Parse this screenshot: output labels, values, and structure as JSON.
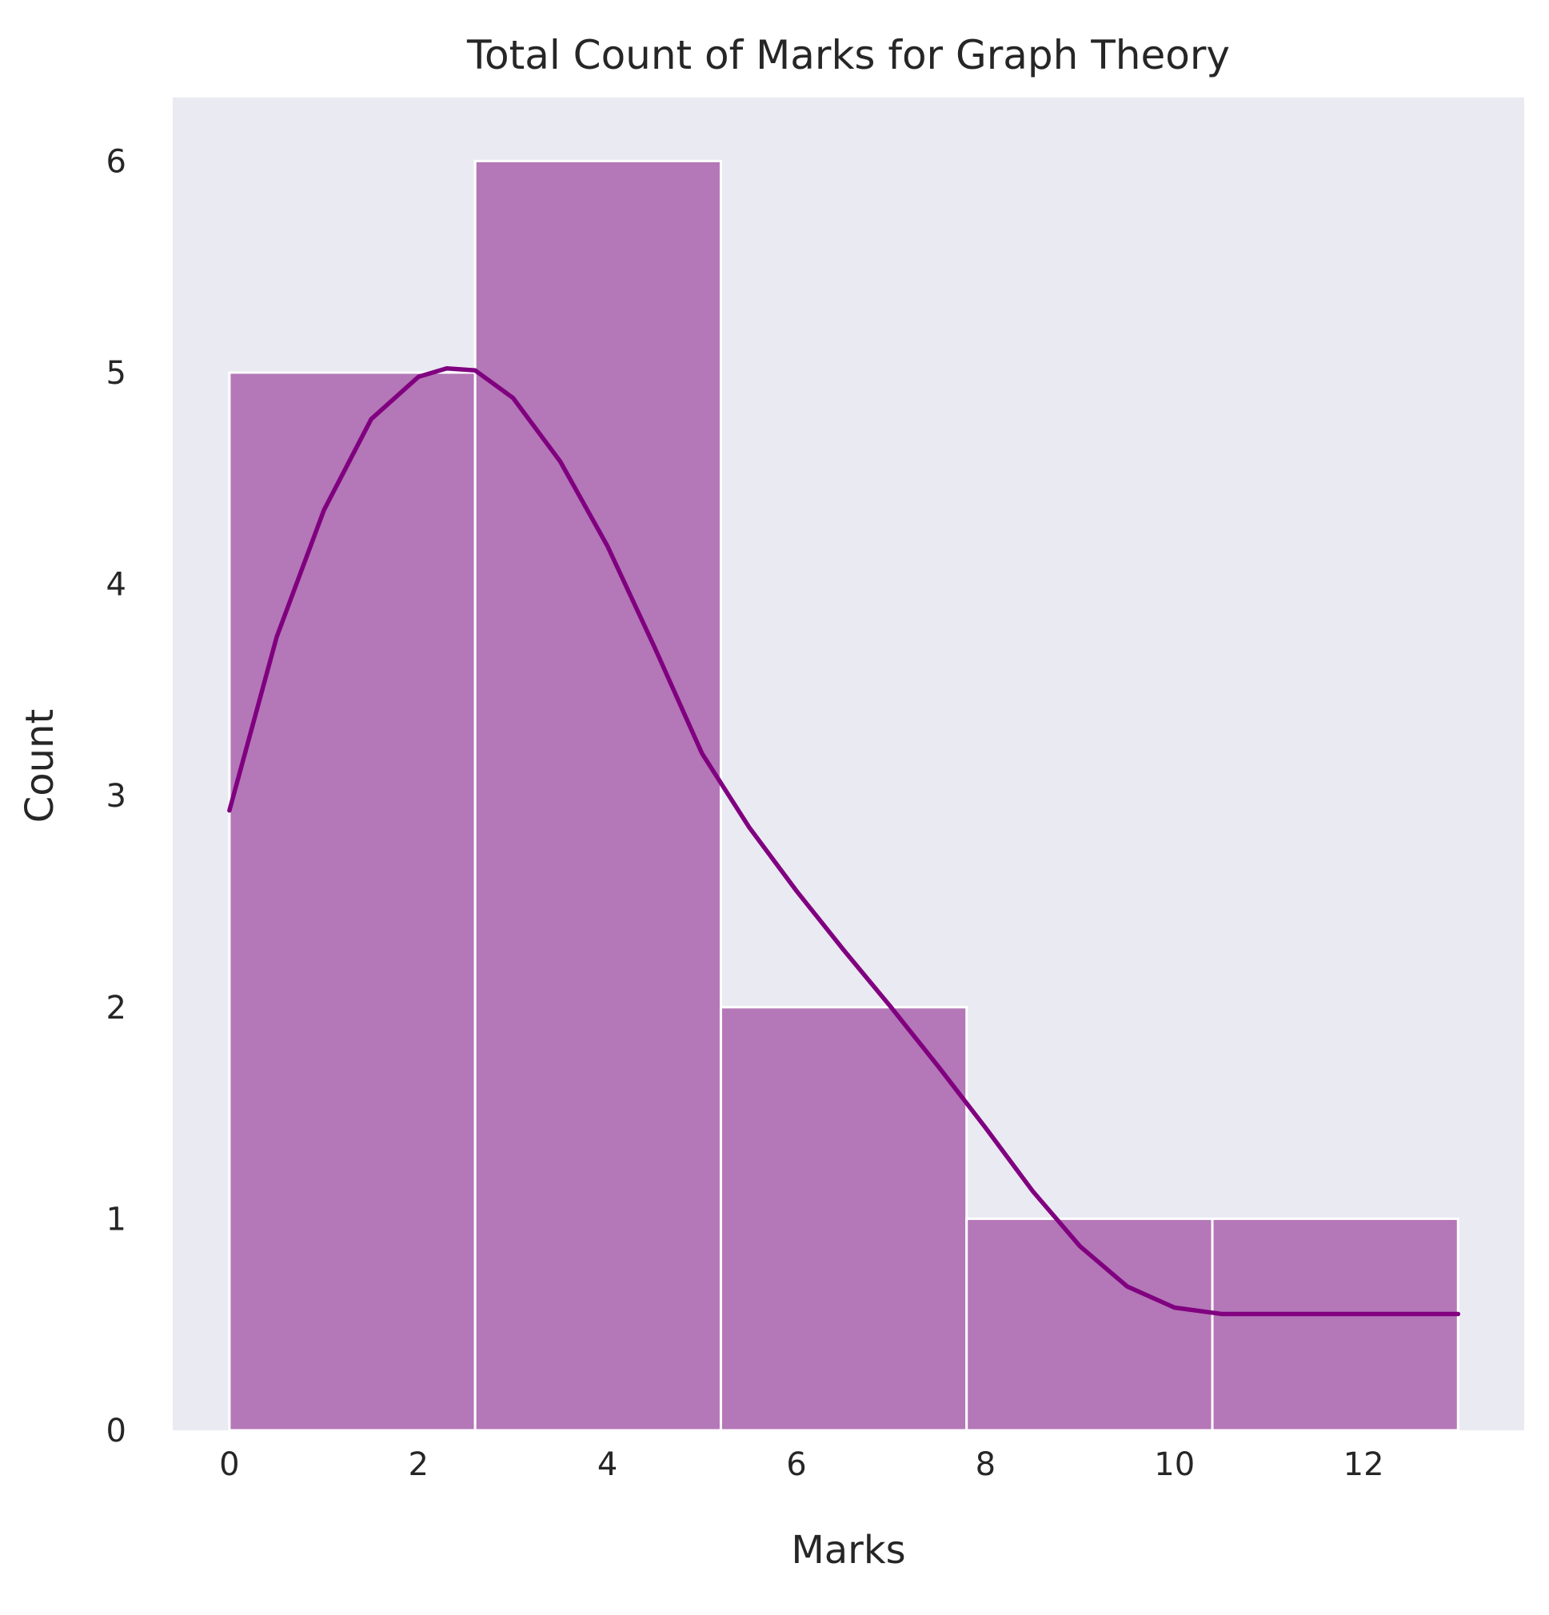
{
  "chart_data": {
    "type": "bar",
    "title": "Total Count of Marks for Graph Theory",
    "xlabel": "Marks",
    "ylabel": "Count",
    "bin_edges": [
      0,
      2.6,
      5.2,
      7.8,
      10.4,
      13
    ],
    "values": [
      5,
      6,
      2,
      1,
      1
    ],
    "xlim": [
      -0.6,
      13.7
    ],
    "ylim": [
      0,
      6.3
    ],
    "xticks": [
      0,
      2,
      4,
      6,
      8,
      10,
      12
    ],
    "yticks": [
      0,
      1,
      2,
      3,
      4,
      5,
      6
    ],
    "grid": false,
    "kde": {
      "x": [
        0,
        0.5,
        1,
        1.5,
        2,
        2.3,
        2.6,
        3,
        3.5,
        4,
        4.5,
        5,
        5.5,
        6,
        6.5,
        7,
        7.5,
        8,
        8.5,
        9,
        9.5,
        10,
        10.5,
        11,
        11.5,
        12,
        12.5,
        13
      ],
      "y": [
        2.93,
        3.75,
        4.35,
        4.78,
        4.98,
        5.02,
        5.01,
        4.88,
        4.58,
        4.18,
        3.7,
        3.2,
        2.85,
        2.55,
        2.27,
        2.0,
        1.72,
        1.43,
        1.13,
        0.87,
        0.68,
        0.58,
        0.55,
        0.55,
        0.55,
        0.55,
        0.55,
        0.55
      ]
    },
    "colors": {
      "bar_fill": "#b477b7",
      "bar_edge": "#ffffff",
      "kde_line": "#800080",
      "plot_background": "#eaeaf2"
    }
  }
}
